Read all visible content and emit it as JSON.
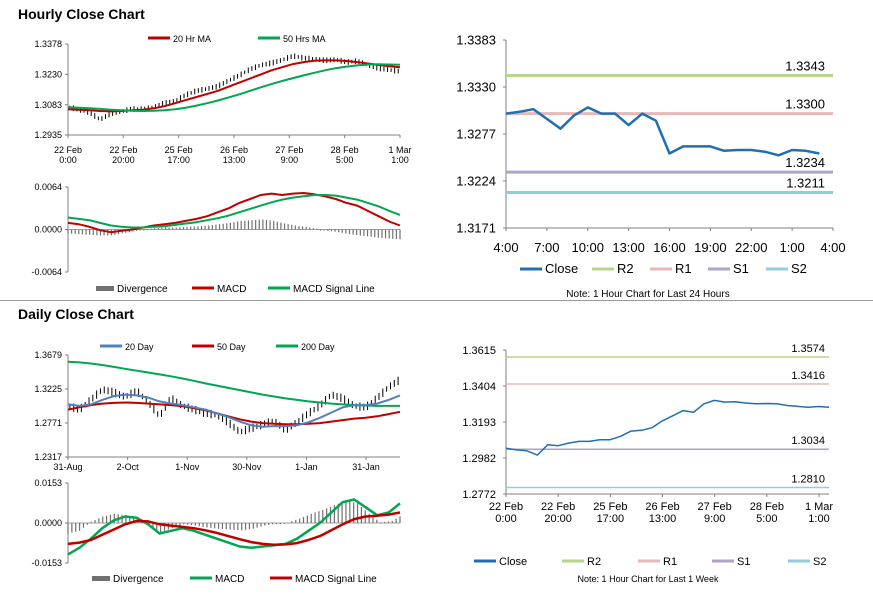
{
  "sections": {
    "hourly_title": "Hourly Close Chart",
    "daily_title": "Daily Close Chart"
  },
  "colors": {
    "price": "#000000",
    "ma_red": "#c00000",
    "ma_green": "#00a650",
    "ma_blue": "#4f81bd",
    "divergence": "#707070",
    "close_line": "#1f6fb2",
    "r2": "#b9d48c",
    "r1": "#e6b8b7",
    "s1": "#b3a2c7",
    "s2": "#93cddd",
    "axis": "#808080"
  },
  "chart_data": [
    {
      "id": "hourly-price",
      "type": "line",
      "legend": [
        "20 Hr MA",
        "50 Hrs MA"
      ],
      "y_ticks": [
        "1.3378",
        "1.3230",
        "1.3083",
        "1.2935"
      ],
      "ylim": [
        1.2935,
        1.3378
      ],
      "x_ticks": [
        [
          "22 Feb",
          "0:00"
        ],
        [
          "22 Feb",
          "20:00"
        ],
        [
          "25 Feb",
          "17:00"
        ],
        [
          "26 Feb",
          "13:00"
        ],
        [
          "27 Feb",
          "9:00"
        ],
        [
          "28 Feb",
          "5:00"
        ],
        [
          "1 Mar",
          "1:00"
        ]
      ],
      "n": 32,
      "series": [
        {
          "name": "Close",
          "values": [
            1.307,
            1.306,
            1.3045,
            1.301,
            1.304,
            1.305,
            1.3062,
            1.306,
            1.307,
            1.309,
            1.31,
            1.313,
            1.315,
            1.316,
            1.3172,
            1.32,
            1.3225,
            1.3255,
            1.3275,
            1.3285,
            1.33,
            1.332,
            1.331,
            1.3305,
            1.3298,
            1.3302,
            1.329,
            1.3295,
            1.3275,
            1.326,
            1.3252,
            1.3245
          ]
        },
        {
          "name": "20 Hr MA",
          "values": [
            1.306,
            1.3058,
            1.3055,
            1.3052,
            1.305,
            1.3052,
            1.3055,
            1.3058,
            1.3065,
            1.3075,
            1.309,
            1.3105,
            1.312,
            1.3135,
            1.315,
            1.317,
            1.319,
            1.321,
            1.323,
            1.325,
            1.3265,
            1.328,
            1.329,
            1.3296,
            1.3298,
            1.3298,
            1.3295,
            1.329,
            1.3283,
            1.3276,
            1.327,
            1.3265
          ]
        },
        {
          "name": "50 Hrs MA",
          "values": [
            1.307,
            1.3068,
            1.3065,
            1.3062,
            1.3058,
            1.3055,
            1.3053,
            1.3052,
            1.3053,
            1.3055,
            1.306,
            1.3068,
            1.3078,
            1.309,
            1.3103,
            1.3118,
            1.3133,
            1.315,
            1.3167,
            1.3183,
            1.3198,
            1.3212,
            1.3225,
            1.3238,
            1.325,
            1.326,
            1.3268,
            1.3274,
            1.3278,
            1.3279,
            1.3278,
            1.3277
          ]
        }
      ]
    },
    {
      "id": "hourly-macd",
      "type": "line",
      "legend": [
        "Divergence",
        "MACD",
        "MACD Signal Line"
      ],
      "y_ticks": [
        "0.0064",
        "0.0000",
        "-0.0064"
      ],
      "ylim": [
        -0.0064,
        0.0064
      ],
      "n": 32,
      "series": [
        {
          "name": "MACD",
          "values": [
            0.001,
            0.0008,
            0.0004,
            -0.0001,
            -0.0004,
            -0.0002,
            0.0,
            0.0003,
            0.0006,
            0.0008,
            0.001,
            0.0013,
            0.0016,
            0.002,
            0.0026,
            0.0032,
            0.004,
            0.0046,
            0.0052,
            0.0054,
            0.0052,
            0.0054,
            0.0055,
            0.0053,
            0.005,
            0.0046,
            0.004,
            0.0036,
            0.0028,
            0.002,
            0.0012,
            0.0006
          ]
        },
        {
          "name": "MACD Signal Line",
          "values": [
            0.0018,
            0.0016,
            0.0014,
            0.001,
            0.0006,
            0.0004,
            0.0003,
            0.0003,
            0.0004,
            0.0005,
            0.0007,
            0.0009,
            0.0011,
            0.0014,
            0.0017,
            0.0021,
            0.0026,
            0.0031,
            0.0036,
            0.0041,
            0.0045,
            0.0048,
            0.005,
            0.0052,
            0.0052,
            0.0051,
            0.0048,
            0.0045,
            0.004,
            0.0035,
            0.0028,
            0.0022
          ]
        },
        {
          "name": "Divergence",
          "values": [
            -0.0006,
            -0.0007,
            -0.0008,
            -0.0009,
            -0.0009,
            -0.0006,
            -0.0003,
            0.0,
            0.0002,
            0.0003,
            0.0003,
            0.0004,
            0.0005,
            0.0006,
            0.0008,
            0.001,
            0.0013,
            0.0014,
            0.0015,
            0.0013,
            0.0009,
            0.0006,
            0.0004,
            0.0001,
            -0.0002,
            -0.0004,
            -0.0007,
            -0.0009,
            -0.0011,
            -0.0013,
            -0.0014,
            -0.0015
          ]
        }
      ]
    },
    {
      "id": "hourly-levels",
      "type": "line",
      "title_note": "Note: 1 Hour Chart for Last 24 Hours",
      "legend": [
        "Close",
        "R2",
        "R1",
        "S1",
        "S2"
      ],
      "y_ticks": [
        "1.3383",
        "1.3330",
        "1.3277",
        "1.3224",
        "1.3171"
      ],
      "ylim": [
        1.3171,
        1.3383
      ],
      "x_ticks": [
        "4:00",
        "7:00",
        "10:00",
        "13:00",
        "16:00",
        "19:00",
        "22:00",
        "1:00",
        "4:00"
      ],
      "levels": [
        {
          "name": "R2",
          "value": 1.3343,
          "label": "1.3343"
        },
        {
          "name": "R1",
          "value": 1.33,
          "label": "1.3300"
        },
        {
          "name": "S1",
          "value": 1.3234,
          "label": "1.3234"
        },
        {
          "name": "S2",
          "value": 1.3211,
          "label": "1.3211"
        }
      ],
      "series": [
        {
          "name": "Close",
          "values": [
            1.33,
            1.3302,
            1.3305,
            1.3294,
            1.3283,
            1.3298,
            1.3307,
            1.33,
            1.33,
            1.3287,
            1.33,
            1.3292,
            1.3255,
            1.3263,
            1.3263,
            1.3263,
            1.3258,
            1.3259,
            1.3259,
            1.3257,
            1.3253,
            1.3259,
            1.3258,
            1.3255
          ]
        }
      ]
    },
    {
      "id": "daily-price",
      "type": "line",
      "legend": [
        "20 Day",
        "50 Day",
        "200 Day"
      ],
      "y_ticks": [
        "1.3679",
        "1.3225",
        "1.2771",
        "1.2317"
      ],
      "ylim": [
        1.2317,
        1.3679
      ],
      "x_ticks": [
        "31-Aug",
        "2-Oct",
        "1-Nov",
        "30-Nov",
        "1-Jan",
        "31-Jan"
      ],
      "n": 30,
      "series": [
        {
          "name": "Close",
          "values": [
            1.3,
            1.295,
            1.308,
            1.322,
            1.318,
            1.312,
            1.32,
            1.305,
            1.286,
            1.31,
            1.3,
            1.295,
            1.29,
            1.288,
            1.278,
            1.265,
            1.27,
            1.275,
            1.28,
            1.268,
            1.278,
            1.29,
            1.3,
            1.315,
            1.31,
            1.3,
            1.298,
            1.31,
            1.325,
            1.335
          ]
        },
        {
          "name": "20 Day",
          "values": [
            1.302,
            1.3,
            1.302,
            1.308,
            1.313,
            1.315,
            1.314,
            1.311,
            1.306,
            1.303,
            1.301,
            1.298,
            1.295,
            1.29,
            1.285,
            1.279,
            1.274,
            1.272,
            1.273,
            1.273,
            1.274,
            1.278,
            1.284,
            1.291,
            1.298,
            1.301,
            1.301,
            1.303,
            1.308,
            1.314
          ]
        },
        {
          "name": "50 Day",
          "values": [
            1.295,
            1.298,
            1.301,
            1.303,
            1.304,
            1.3045,
            1.304,
            1.303,
            1.302,
            1.301,
            1.2995,
            1.297,
            1.294,
            1.29,
            1.286,
            1.282,
            1.279,
            1.277,
            1.276,
            1.2755,
            1.2755,
            1.276,
            1.277,
            1.279,
            1.281,
            1.283,
            1.284,
            1.286,
            1.289,
            1.292
          ]
        },
        {
          "name": "200 Day",
          "values": [
            1.359,
            1.358,
            1.3565,
            1.3545,
            1.352,
            1.3495,
            1.347,
            1.3445,
            1.342,
            1.3395,
            1.3365,
            1.3335,
            1.33,
            1.327,
            1.324,
            1.321,
            1.318,
            1.315,
            1.3125,
            1.31,
            1.308,
            1.306,
            1.3045,
            1.303,
            1.302,
            1.301,
            1.3005,
            1.3,
            1.3,
            1.3
          ]
        }
      ]
    },
    {
      "id": "daily-macd",
      "type": "line",
      "legend": [
        "Divergence",
        "MACD",
        "MACD Signal Line"
      ],
      "y_ticks": [
        "0.0153",
        "0.0000",
        "-0.0153"
      ],
      "ylim": [
        -0.0153,
        0.0153
      ],
      "n": 30,
      "series": [
        {
          "name": "MACD",
          "values": [
            -0.012,
            -0.0095,
            -0.006,
            -0.002,
            0.001,
            0.0025,
            0.002,
            -0.0005,
            -0.004,
            -0.003,
            -0.002,
            -0.003,
            -0.0045,
            -0.006,
            -0.0075,
            -0.009,
            -0.0095,
            -0.009,
            -0.0085,
            -0.008,
            -0.006,
            -0.003,
            0.0,
            0.004,
            0.008,
            0.009,
            0.006,
            0.003,
            0.004,
            0.0075
          ]
        },
        {
          "name": "MACD Signal Line",
          "values": [
            -0.008,
            -0.0075,
            -0.0065,
            -0.0045,
            -0.0025,
            -0.0005,
            0.0008,
            0.0006,
            -0.0005,
            -0.001,
            -0.0015,
            -0.002,
            -0.0028,
            -0.0038,
            -0.005,
            -0.0062,
            -0.0073,
            -0.008,
            -0.0083,
            -0.0082,
            -0.0077,
            -0.0065,
            -0.005,
            -0.0028,
            -0.0005,
            0.0015,
            0.0025,
            0.0028,
            0.0032,
            0.004
          ]
        },
        {
          "name": "Divergence",
          "values": [
            -0.004,
            -0.003,
            0.0005,
            0.0025,
            0.0035,
            0.003,
            0.0012,
            -0.0011,
            -0.0035,
            -0.002,
            -0.0005,
            -0.001,
            -0.0017,
            -0.0022,
            -0.0025,
            -0.0028,
            -0.0022,
            -0.001,
            -0.0002,
            0.0002,
            0.0017,
            0.0035,
            0.005,
            0.0068,
            0.0085,
            0.0075,
            0.0035,
            0.0002,
            0.0008,
            0.0035
          ]
        }
      ]
    },
    {
      "id": "daily-levels",
      "type": "line",
      "title_note": "Note: 1 Hour Chart for Last 1 Week",
      "legend": [
        "Close",
        "R2",
        "R1",
        "S1",
        "S2"
      ],
      "y_ticks": [
        "1.3615",
        "1.3404",
        "1.3193",
        "1.2982",
        "1.2772"
      ],
      "ylim": [
        1.2772,
        1.3615
      ],
      "x_ticks": [
        [
          "22 Feb",
          "0:00"
        ],
        [
          "22 Feb",
          "20:00"
        ],
        [
          "25 Feb",
          "17:00"
        ],
        [
          "26 Feb",
          "13:00"
        ],
        [
          "27 Feb",
          "9:00"
        ],
        [
          "28 Feb",
          "5:00"
        ],
        [
          "1 Mar",
          "1:00"
        ]
      ],
      "levels": [
        {
          "name": "R2",
          "value": 1.3574,
          "label": "1.3574"
        },
        {
          "name": "R1",
          "value": 1.3416,
          "label": "1.3416"
        },
        {
          "name": "S1",
          "value": 1.3034,
          "label": "1.3034"
        },
        {
          "name": "S2",
          "value": 1.281,
          "label": "1.2810"
        }
      ],
      "series": [
        {
          "name": "Close",
          "values": [
            1.304,
            1.303,
            1.3025,
            1.3,
            1.306,
            1.3055,
            1.307,
            1.308,
            1.308,
            1.309,
            1.309,
            1.311,
            1.314,
            1.3145,
            1.316,
            1.32,
            1.323,
            1.326,
            1.325,
            1.33,
            1.332,
            1.331,
            1.3312,
            1.3305,
            1.33,
            1.3302,
            1.33,
            1.329,
            1.3285,
            1.328,
            1.3284,
            1.328
          ]
        }
      ]
    }
  ]
}
